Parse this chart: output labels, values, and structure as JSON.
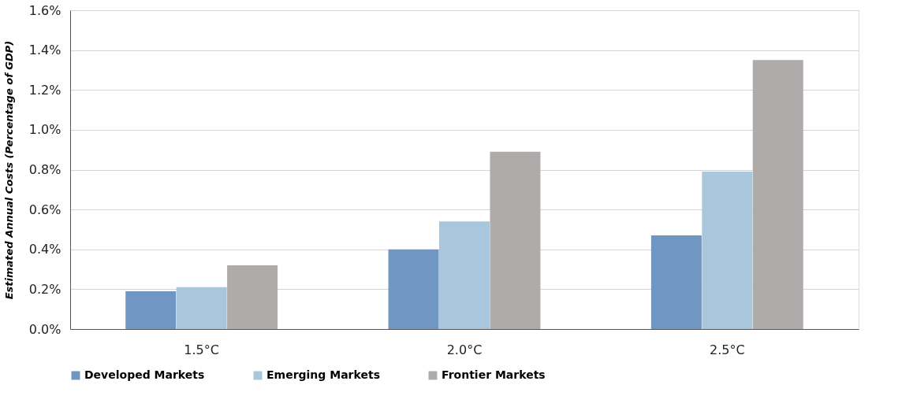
{
  "chart_data": {
    "type": "bar",
    "ylabel": "Estimated Annual Costs (Percentage of GDP)",
    "categories": [
      "1.5°C",
      "2.0°C",
      "2.5°C"
    ],
    "series": [
      {
        "name": "Developed Markets",
        "color": "#7096c4",
        "values": [
          0.19,
          0.4,
          0.47
        ]
      },
      {
        "name": "Emerging Markets",
        "color": "#a9c7dc",
        "values": [
          0.21,
          0.54,
          0.79
        ]
      },
      {
        "name": "Frontier Markets",
        "color": "#afabab",
        "values": [
          0.32,
          0.89,
          1.35
        ]
      }
    ],
    "ylim": [
      0,
      1.6
    ],
    "yticks": [
      {
        "value": 0,
        "label": "0.0%"
      },
      {
        "value": 0.2,
        "label": "0.2%"
      },
      {
        "value": 0.4,
        "label": "0.4%"
      },
      {
        "value": 0.6,
        "label": "0.6%"
      },
      {
        "value": 0.8,
        "label": "0.8%"
      },
      {
        "value": 1.0,
        "label": "1.0%"
      },
      {
        "value": 1.2,
        "label": "1.2%"
      },
      {
        "value": 1.4,
        "label": "1.4%"
      },
      {
        "value": 1.6,
        "label": "1.6%"
      }
    ],
    "grid": "y",
    "legend": "bottom"
  }
}
